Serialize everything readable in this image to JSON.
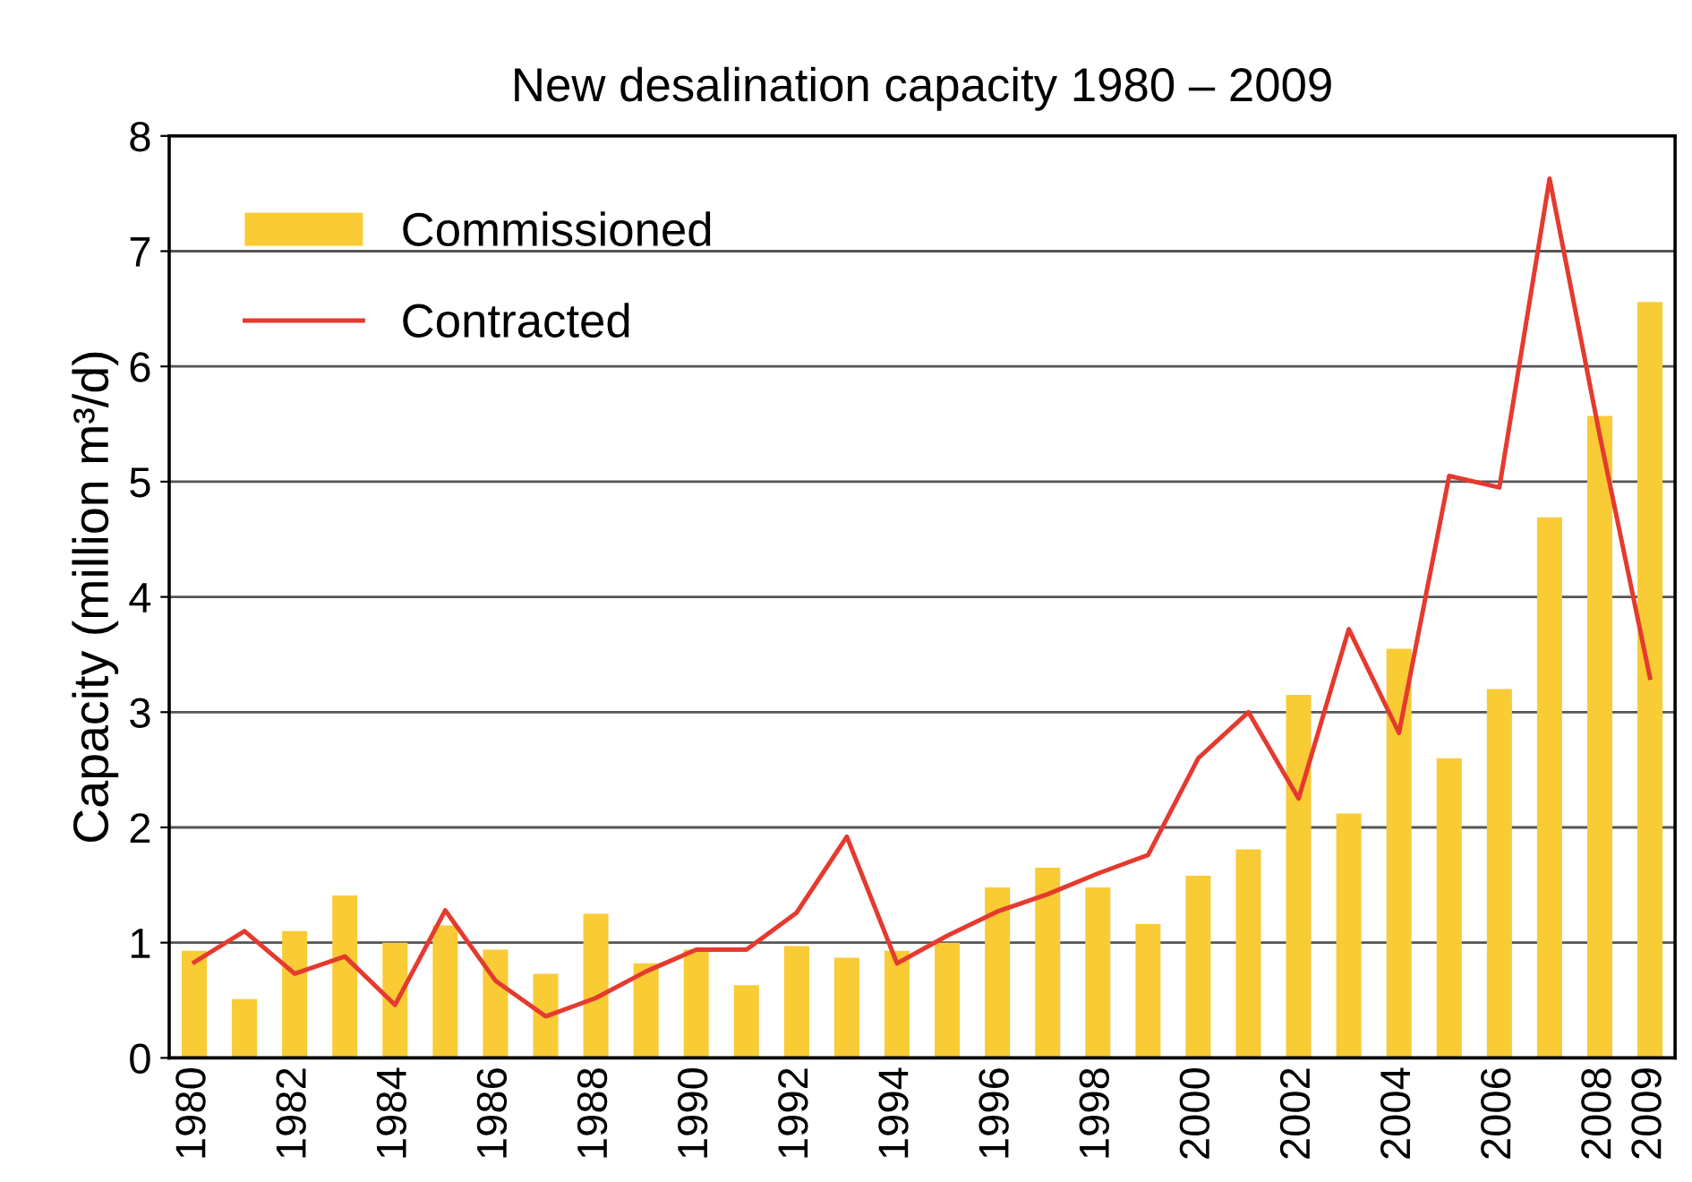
{
  "chart_data": {
    "type": "bar",
    "title": "New desalination capacity 1980 – 2009",
    "ylabel": "Capacity (million m³/d)",
    "categories": [
      "1980",
      null,
      "1982",
      null,
      "1984",
      null,
      "1986",
      null,
      "1988",
      null,
      "1990",
      null,
      "1992",
      null,
      "1994",
      null,
      "1996",
      null,
      "1998",
      null,
      "2000",
      null,
      "2002",
      null,
      "2004",
      null,
      "2006",
      null,
      "2008",
      "2009"
    ],
    "series": [
      {
        "name": "Commissioned",
        "color": "#f9cb35",
        "values": [
          0.93,
          0.51,
          1.1,
          1.41,
          1.0,
          1.15,
          0.94,
          0.73,
          1.25,
          0.82,
          0.94,
          0.63,
          0.97,
          0.87,
          0.93,
          1.0,
          1.48,
          1.65,
          1.48,
          1.16,
          1.58,
          1.81,
          3.15,
          2.12,
          3.55,
          2.6,
          3.2,
          4.69,
          5.57,
          6.56
        ]
      },
      {
        "name": "Contracted",
        "type": "line",
        "color": "#e53a2f",
        "values": [
          0.83,
          1.1,
          0.73,
          0.88,
          0.46,
          1.28,
          0.67,
          0.36,
          0.52,
          0.75,
          0.94,
          0.94,
          1.26,
          1.92,
          0.82,
          1.06,
          1.27,
          1.42,
          1.6,
          1.76,
          2.6,
          3.0,
          2.25,
          3.72,
          2.82,
          5.05,
          4.95,
          7.63,
          5.4,
          3.3
        ]
      }
    ],
    "ylim": [
      0,
      8
    ],
    "yticks": [
      0,
      1,
      2,
      3,
      4,
      5,
      6,
      7,
      8
    ],
    "grid": "y",
    "legend": "top left"
  }
}
